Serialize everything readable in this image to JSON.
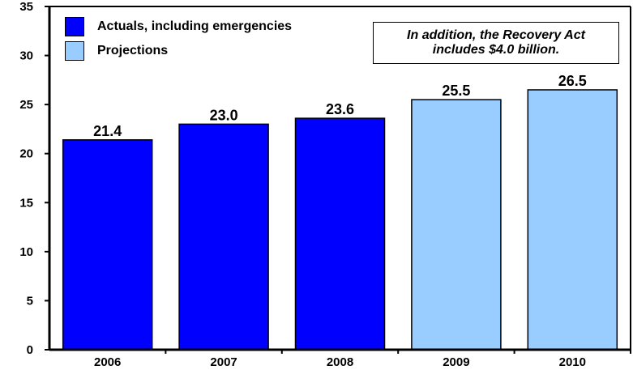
{
  "chart_data": {
    "type": "bar",
    "categories": [
      "2006",
      "2007",
      "2008",
      "2009",
      "2010"
    ],
    "values": [
      21.4,
      23.0,
      23.6,
      25.5,
      26.5
    ],
    "data_labels": [
      "21.4",
      "23.0",
      "23.6",
      "25.5",
      "26.5"
    ],
    "bar_kinds": [
      "actual",
      "actual",
      "actual",
      "projection",
      "projection"
    ],
    "ylim": [
      0,
      35
    ],
    "yticks": [
      "0",
      "5",
      "10",
      "15",
      "20",
      "25",
      "30",
      "35"
    ],
    "ytick_values": [
      0,
      5,
      10,
      15,
      20,
      25,
      30,
      35
    ],
    "title": "",
    "xlabel": "",
    "ylabel": "",
    "grid": false,
    "legend": {
      "placement": "top-left",
      "entries": [
        {
          "label": "Actuals, including emergencies",
          "color": "#0000ff",
          "kind": "actual"
        },
        {
          "label": "Projections",
          "color": "#99ccff",
          "kind": "projection"
        }
      ]
    },
    "annotation": {
      "line1": "In addition, the Recovery Act",
      "line2": "includes $4.0 billion."
    },
    "colors": {
      "actual": "#0000ff",
      "projection": "#99ccff",
      "outline": "#000000"
    }
  }
}
